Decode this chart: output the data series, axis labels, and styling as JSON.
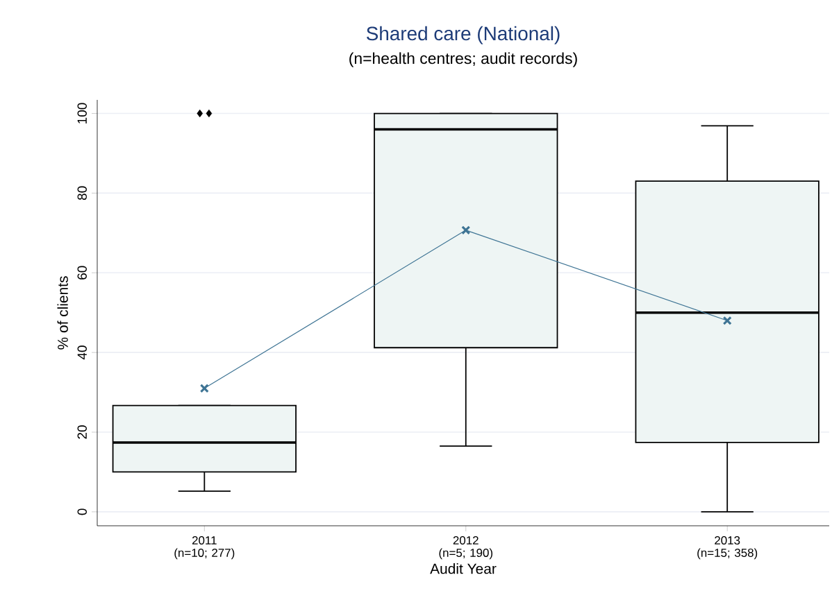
{
  "chart_data": {
    "type": "box",
    "title": "Shared care (National)",
    "subtitle": "(n=health centres; audit records)",
    "xlabel": "Audit Year",
    "ylabel": "% of clients",
    "categories": [
      "2011 (n=10; 277)",
      "2012 (n=5; 190)",
      "2013 (n=15; 358)"
    ],
    "ylim": [
      -3.5,
      103.4
    ],
    "yticks": [
      0,
      20,
      40,
      60,
      80,
      100
    ],
    "grid": "y",
    "marker": "cross",
    "series": [
      {
        "color": "#eef5f4",
        "boxes": [
          {
            "low": 5.2,
            "q1": 10,
            "median": 17.4,
            "q3": 26.7,
            "high": 26.7,
            "outliers": [
              100,
              100
            ]
          },
          {
            "low": 16.5,
            "q1": 41.2,
            "median": 96,
            "q3": 100,
            "high": 100
          },
          {
            "low": 0,
            "q1": 17.4,
            "median": 50,
            "q3": 83,
            "high": 96.9
          }
        ]
      },
      {
        "type": "line",
        "color": "#3e7494",
        "values": [
          31,
          70.7,
          48
        ]
      }
    ]
  }
}
